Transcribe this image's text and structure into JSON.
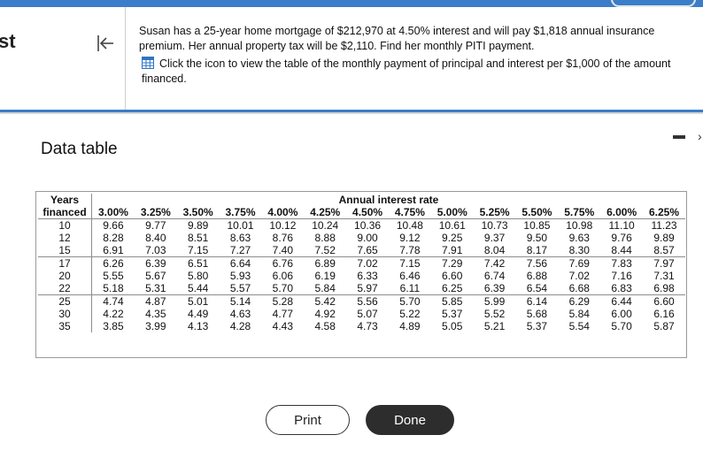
{
  "side": {
    "partial_text": "st"
  },
  "question": {
    "text": "Susan has a 25-year home mortgage of $212,970 at 4.50% interest and will pay $1,818 annual insurance premium. Her annual property tax will be $2,110. Find her monthly PITI payment.",
    "icon_link_text": "Click the icon to view the table of the monthly payment of principal and interest per $1,000 of the amount financed."
  },
  "dialog": {
    "title": "Data table"
  },
  "table": {
    "header_years_1": "Years",
    "header_years_2": "financed",
    "header_group": "Annual interest rate",
    "rates": [
      "3.00%",
      "3.25%",
      "3.50%",
      "3.75%",
      "4.00%",
      "4.25%",
      "4.50%",
      "4.75%",
      "5.00%",
      "5.25%",
      "5.50%",
      "5.75%",
      "6.00%",
      "6.25%"
    ],
    "rows": [
      {
        "years": "10",
        "values": [
          "9.66",
          "9.77",
          "9.89",
          "10.01",
          "10.12",
          "10.24",
          "10.36",
          "10.48",
          "10.61",
          "10.73",
          "10.85",
          "10.98",
          "11.10",
          "11.23"
        ]
      },
      {
        "years": "12",
        "values": [
          "8.28",
          "8.40",
          "8.51",
          "8.63",
          "8.76",
          "8.88",
          "9.00",
          "9.12",
          "9.25",
          "9.37",
          "9.50",
          "9.63",
          "9.76",
          "9.89"
        ]
      },
      {
        "years": "15",
        "values": [
          "6.91",
          "7.03",
          "7.15",
          "7.27",
          "7.40",
          "7.52",
          "7.65",
          "7.78",
          "7.91",
          "8.04",
          "8.17",
          "8.30",
          "8.44",
          "8.57"
        ]
      },
      {
        "years": "17",
        "values": [
          "6.26",
          "6.39",
          "6.51",
          "6.64",
          "6.76",
          "6.89",
          "7.02",
          "7.15",
          "7.29",
          "7.42",
          "7.56",
          "7.69",
          "7.83",
          "7.97"
        ]
      },
      {
        "years": "20",
        "values": [
          "5.55",
          "5.67",
          "5.80",
          "5.93",
          "6.06",
          "6.19",
          "6.33",
          "6.46",
          "6.60",
          "6.74",
          "6.88",
          "7.02",
          "7.16",
          "7.31"
        ]
      },
      {
        "years": "22",
        "values": [
          "5.18",
          "5.31",
          "5.44",
          "5.57",
          "5.70",
          "5.84",
          "5.97",
          "6.11",
          "6.25",
          "6.39",
          "6.54",
          "6.68",
          "6.83",
          "6.98"
        ]
      },
      {
        "years": "25",
        "values": [
          "4.74",
          "4.87",
          "5.01",
          "5.14",
          "5.28",
          "5.42",
          "5.56",
          "5.70",
          "5.85",
          "5.99",
          "6.14",
          "6.29",
          "6.44",
          "6.60"
        ]
      },
      {
        "years": "30",
        "values": [
          "4.22",
          "4.35",
          "4.49",
          "4.63",
          "4.77",
          "4.92",
          "5.07",
          "5.22",
          "5.37",
          "5.52",
          "5.68",
          "5.84",
          "6.00",
          "6.16"
        ]
      },
      {
        "years": "35",
        "values": [
          "3.85",
          "3.99",
          "4.13",
          "4.28",
          "4.43",
          "4.58",
          "4.73",
          "4.89",
          "5.05",
          "5.21",
          "5.37",
          "5.54",
          "5.70",
          "5.87"
        ]
      }
    ]
  },
  "buttons": {
    "print": "Print",
    "done": "Done"
  },
  "colors": {
    "accent": "#3a7dc9",
    "done_bg": "#2d2d2d"
  }
}
